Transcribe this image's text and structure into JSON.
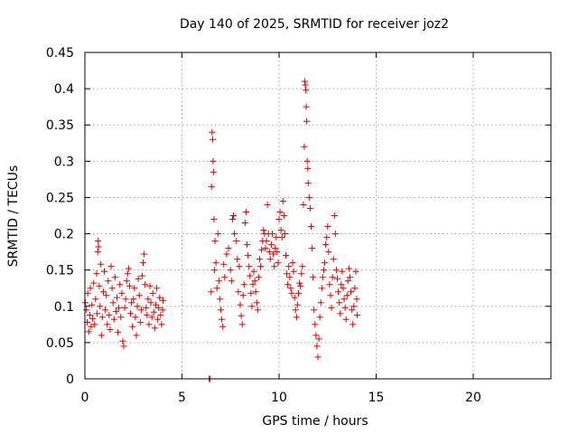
{
  "chart_data": {
    "type": "scatter",
    "title": "Day 140 of 2025, SRMTID for receiver joz2",
    "xlabel": "GPS time / hours",
    "ylabel": "SRMTID / TECUs",
    "xlim": [
      0,
      24
    ],
    "ylim": [
      0,
      0.45
    ],
    "xticks": [
      0,
      5,
      10,
      15,
      20
    ],
    "xtick_labels": [
      "0",
      "5",
      "10",
      "15",
      "20"
    ],
    "yticks": [
      0,
      0.05,
      0.1,
      0.15,
      0.2,
      0.25,
      0.3,
      0.35,
      0.4,
      0.45
    ],
    "ytick_labels": [
      "0",
      "0.05",
      "0.1",
      "0.15",
      "0.2",
      "0.25",
      "0.3",
      "0.35",
      "0.4",
      "0.45"
    ],
    "grid": true,
    "marker": "+",
    "color": "#e00000",
    "points": [
      [
        0.02,
        0.105
      ],
      [
        0.08,
        0.095
      ],
      [
        0.12,
        0.078
      ],
      [
        0.15,
        0.118
      ],
      [
        0.2,
        0.065
      ],
      [
        0.25,
        0.088
      ],
      [
        0.28,
        0.125
      ],
      [
        0.32,
        0.072
      ],
      [
        0.36,
        0.102
      ],
      [
        0.4,
        0.083
      ],
      [
        0.45,
        0.132
      ],
      [
        0.5,
        0.075
      ],
      [
        0.55,
        0.11
      ],
      [
        0.6,
        0.145
      ],
      [
        0.63,
        0.09
      ],
      [
        0.66,
        0.175
      ],
      [
        0.68,
        0.19
      ],
      [
        0.7,
        0.182
      ],
      [
        0.74,
        0.128
      ],
      [
        0.78,
        0.1
      ],
      [
        0.82,
        0.158
      ],
      [
        0.85,
        0.06
      ],
      [
        0.9,
        0.085
      ],
      [
        0.95,
        0.12
      ],
      [
        1.0,
        0.148
      ],
      [
        1.05,
        0.095
      ],
      [
        1.1,
        0.115
      ],
      [
        1.15,
        0.075
      ],
      [
        1.2,
        0.135
      ],
      [
        1.25,
        0.088
      ],
      [
        1.3,
        0.068
      ],
      [
        1.35,
        0.155
      ],
      [
        1.4,
        0.125
      ],
      [
        1.45,
        0.105
      ],
      [
        1.5,
        0.082
      ],
      [
        1.55,
        0.14
      ],
      [
        1.6,
        0.093
      ],
      [
        1.65,
        0.112
      ],
      [
        1.7,
        0.064
      ],
      [
        1.75,
        0.098
      ],
      [
        1.8,
        0.13
      ],
      [
        1.85,
        0.085
      ],
      [
        1.9,
        0.118
      ],
      [
        1.95,
        0.052
      ],
      [
        2.0,
        0.045
      ],
      [
        2.05,
        0.098
      ],
      [
        2.1,
        0.11
      ],
      [
        2.15,
        0.135
      ],
      [
        2.2,
        0.145
      ],
      [
        2.25,
        0.152
      ],
      [
        2.3,
        0.128
      ],
      [
        2.35,
        0.09
      ],
      [
        2.4,
        0.105
      ],
      [
        2.45,
        0.072
      ],
      [
        2.5,
        0.11
      ],
      [
        2.55,
        0.125
      ],
      [
        2.6,
        0.085
      ],
      [
        2.65,
        0.06
      ],
      [
        2.7,
        0.1
      ],
      [
        2.75,
        0.138
      ],
      [
        2.8,
        0.115
      ],
      [
        2.85,
        0.078
      ],
      [
        2.9,
        0.095
      ],
      [
        2.95,
        0.142
      ],
      [
        3.0,
        0.16
      ],
      [
        3.05,
        0.172
      ],
      [
        3.1,
        0.13
      ],
      [
        3.15,
        0.098
      ],
      [
        3.2,
        0.088
      ],
      [
        3.25,
        0.11
      ],
      [
        3.3,
        0.075
      ],
      [
        3.35,
        0.128
      ],
      [
        3.4,
        0.105
      ],
      [
        3.45,
        0.085
      ],
      [
        3.5,
        0.118
      ],
      [
        3.55,
        0.092
      ],
      [
        3.6,
        0.07
      ],
      [
        3.65,
        0.102
      ],
      [
        3.7,
        0.125
      ],
      [
        3.75,
        0.082
      ],
      [
        3.8,
        0.098
      ],
      [
        3.85,
        0.112
      ],
      [
        3.9,
        0.088
      ],
      [
        3.95,
        0.075
      ],
      [
        4.0,
        0.095
      ],
      [
        4.02,
        0.108
      ],
      [
        6.4,
        0.0
      ],
      [
        6.45,
        0.0
      ],
      [
        6.5,
        0.12
      ],
      [
        6.52,
        0.265
      ],
      [
        6.55,
        0.34
      ],
      [
        6.58,
        0.33
      ],
      [
        6.6,
        0.3
      ],
      [
        6.62,
        0.285
      ],
      [
        6.65,
        0.22
      ],
      [
        6.68,
        0.15
      ],
      [
        6.7,
        0.19
      ],
      [
        6.75,
        0.16
      ],
      [
        6.8,
        0.125
      ],
      [
        6.85,
        0.2
      ],
      [
        6.9,
        0.135
      ],
      [
        6.95,
        0.11
      ],
      [
        7.0,
        0.095
      ],
      [
        7.05,
        0.082
      ],
      [
        7.1,
        0.072
      ],
      [
        7.15,
        0.158
      ],
      [
        7.2,
        0.14
      ],
      [
        7.3,
        0.172
      ],
      [
        7.4,
        0.18
      ],
      [
        7.5,
        0.15
      ],
      [
        7.55,
        0.135
      ],
      [
        7.6,
        0.22
      ],
      [
        7.65,
        0.225
      ],
      [
        7.7,
        0.2
      ],
      [
        7.8,
        0.19
      ],
      [
        7.85,
        0.165
      ],
      [
        7.9,
        0.12
      ],
      [
        7.95,
        0.155
      ],
      [
        8.0,
        0.102
      ],
      [
        8.05,
        0.087
      ],
      [
        8.1,
        0.075
      ],
      [
        8.15,
        0.115
      ],
      [
        8.2,
        0.13
      ],
      [
        8.25,
        0.215
      ],
      [
        8.3,
        0.23
      ],
      [
        8.35,
        0.185
      ],
      [
        8.4,
        0.17
      ],
      [
        8.45,
        0.155
      ],
      [
        8.5,
        0.142
      ],
      [
        8.55,
        0.118
      ],
      [
        8.6,
        0.1
      ],
      [
        8.65,
        0.13
      ],
      [
        8.7,
        0.148
      ],
      [
        8.75,
        0.135
      ],
      [
        8.8,
        0.12
      ],
      [
        8.85,
        0.105
      ],
      [
        8.9,
        0.095
      ],
      [
        8.95,
        0.14
      ],
      [
        9.0,
        0.165
      ],
      [
        9.05,
        0.155
      ],
      [
        9.1,
        0.178
      ],
      [
        9.15,
        0.19
      ],
      [
        9.2,
        0.205
      ],
      [
        9.25,
        0.2
      ],
      [
        9.3,
        0.18
      ],
      [
        9.35,
        0.19
      ],
      [
        9.4,
        0.24
      ],
      [
        9.45,
        0.2
      ],
      [
        9.5,
        0.175
      ],
      [
        9.55,
        0.165
      ],
      [
        9.6,
        0.185
      ],
      [
        9.65,
        0.2
      ],
      [
        9.7,
        0.172
      ],
      [
        9.75,
        0.155
      ],
      [
        9.8,
        0.18
      ],
      [
        9.85,
        0.195
      ],
      [
        9.9,
        0.175
      ],
      [
        9.95,
        0.16
      ],
      [
        10.0,
        0.22
      ],
      [
        10.05,
        0.23
      ],
      [
        10.1,
        0.205
      ],
      [
        10.15,
        0.195
      ],
      [
        10.2,
        0.245
      ],
      [
        10.25,
        0.225
      ],
      [
        10.3,
        0.2
      ],
      [
        10.35,
        0.17
      ],
      [
        10.4,
        0.145
      ],
      [
        10.45,
        0.13
      ],
      [
        10.5,
        0.155
      ],
      [
        10.55,
        0.14
      ],
      [
        10.6,
        0.125
      ],
      [
        10.65,
        0.118
      ],
      [
        10.7,
        0.16
      ],
      [
        10.75,
        0.148
      ],
      [
        10.8,
        0.112
      ],
      [
        10.85,
        0.095
      ],
      [
        10.9,
        0.085
      ],
      [
        10.95,
        0.102
      ],
      [
        11.0,
        0.118
      ],
      [
        11.05,
        0.132
      ],
      [
        11.1,
        0.128
      ],
      [
        11.15,
        0.145
      ],
      [
        11.2,
        0.155
      ],
      [
        11.25,
        0.24
      ],
      [
        11.3,
        0.32
      ],
      [
        11.32,
        0.41
      ],
      [
        11.35,
        0.405
      ],
      [
        11.38,
        0.398
      ],
      [
        11.4,
        0.375
      ],
      [
        11.42,
        0.355
      ],
      [
        11.45,
        0.3
      ],
      [
        11.48,
        0.29
      ],
      [
        11.5,
        0.27
      ],
      [
        11.55,
        0.25
      ],
      [
        11.6,
        0.235
      ],
      [
        11.65,
        0.21
      ],
      [
        11.7,
        0.18
      ],
      [
        11.75,
        0.14
      ],
      [
        11.8,
        0.095
      ],
      [
        11.85,
        0.075
      ],
      [
        11.9,
        0.06
      ],
      [
        11.95,
        0.045
      ],
      [
        12.0,
        0.03
      ],
      [
        12.05,
        0.055
      ],
      [
        12.1,
        0.085
      ],
      [
        12.15,
        0.105
      ],
      [
        12.2,
        0.125
      ],
      [
        12.25,
        0.14
      ],
      [
        12.3,
        0.15
      ],
      [
        12.35,
        0.16
      ],
      [
        12.4,
        0.185
      ],
      [
        12.45,
        0.195
      ],
      [
        12.5,
        0.21
      ],
      [
        12.55,
        0.175
      ],
      [
        12.6,
        0.13
      ],
      [
        12.65,
        0.115
      ],
      [
        12.7,
        0.098
      ],
      [
        12.75,
        0.14
      ],
      [
        12.8,
        0.165
      ],
      [
        12.85,
        0.225
      ],
      [
        12.9,
        0.2
      ],
      [
        12.95,
        0.15
      ],
      [
        13.0,
        0.138
      ],
      [
        13.05,
        0.12
      ],
      [
        13.1,
        0.105
      ],
      [
        13.15,
        0.09
      ],
      [
        13.2,
        0.13
      ],
      [
        13.25,
        0.148
      ],
      [
        13.3,
        0.125
      ],
      [
        13.35,
        0.11
      ],
      [
        13.4,
        0.098
      ],
      [
        13.45,
        0.082
      ],
      [
        13.5,
        0.115
      ],
      [
        13.55,
        0.135
      ],
      [
        13.6,
        0.152
      ],
      [
        13.65,
        0.14
      ],
      [
        13.7,
        0.12
      ],
      [
        13.75,
        0.095
      ],
      [
        13.8,
        0.075
      ],
      [
        13.85,
        0.1
      ],
      [
        13.9,
        0.125
      ],
      [
        13.95,
        0.148
      ],
      [
        14.0,
        0.11
      ],
      [
        14.02,
        0.088
      ]
    ]
  }
}
